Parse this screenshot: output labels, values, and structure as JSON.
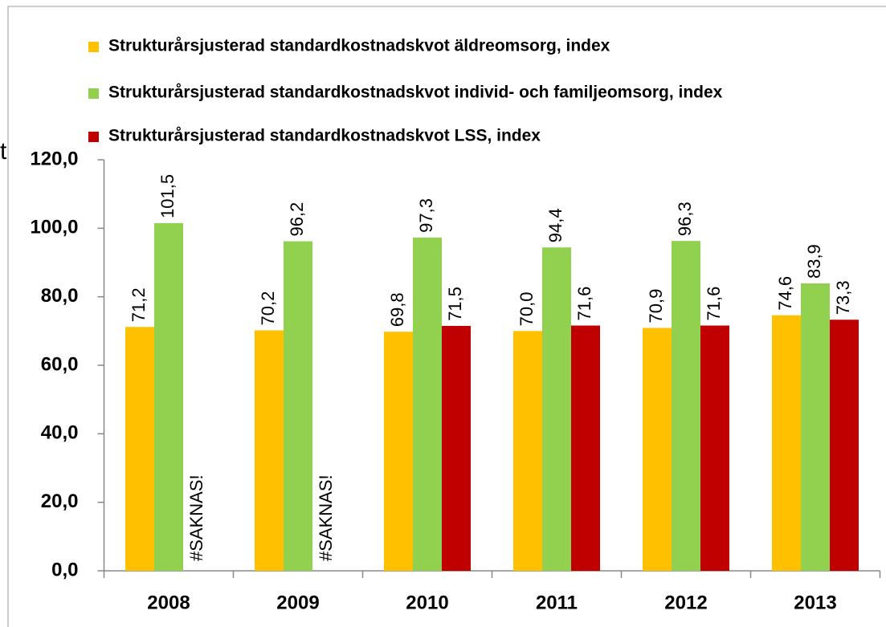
{
  "chart_data": {
    "type": "bar",
    "ylabel": "t",
    "categories": [
      "2008",
      "2009",
      "2010",
      "2011",
      "2012",
      "2013"
    ],
    "series": [
      {
        "name": "Strukturårsjusterad standardkostnadskvot äldreomsorg, index",
        "color": "#FFC000",
        "values": [
          71.2,
          70.2,
          69.8,
          70.0,
          70.9,
          74.6
        ],
        "value_labels": [
          "71,2",
          "70,2",
          "69,8",
          "70,0",
          "70,9",
          "74,6"
        ]
      },
      {
        "name": "Strukturårsjusterad standardkostnadskvot individ- och familjeomsorg, index",
        "color": "#92D050",
        "values": [
          101.5,
          96.2,
          97.3,
          94.4,
          96.3,
          83.9
        ],
        "value_labels": [
          "101,5",
          "96,2",
          "97,3",
          "94,4",
          "96,3",
          "83,9"
        ]
      },
      {
        "name": "Strukturårsjusterad standardkostnadskvot LSS, index",
        "color": "#C00000",
        "values": [
          null,
          null,
          71.5,
          71.6,
          71.6,
          73.3
        ],
        "value_labels": [
          "#SAKNAS!",
          "#SAKNAS!",
          "71,5",
          "71,6",
          "71,6",
          "73,3"
        ]
      }
    ],
    "ylim": [
      0,
      120
    ],
    "yticks": [
      {
        "value": 0,
        "label": "0,0"
      },
      {
        "value": 20,
        "label": "20,0"
      },
      {
        "value": 40,
        "label": "40,0"
      },
      {
        "value": 60,
        "label": "60,0"
      },
      {
        "value": 80,
        "label": "80,0"
      },
      {
        "value": 100,
        "label": "100,0"
      },
      {
        "value": 120,
        "label": "120,0"
      }
    ]
  }
}
